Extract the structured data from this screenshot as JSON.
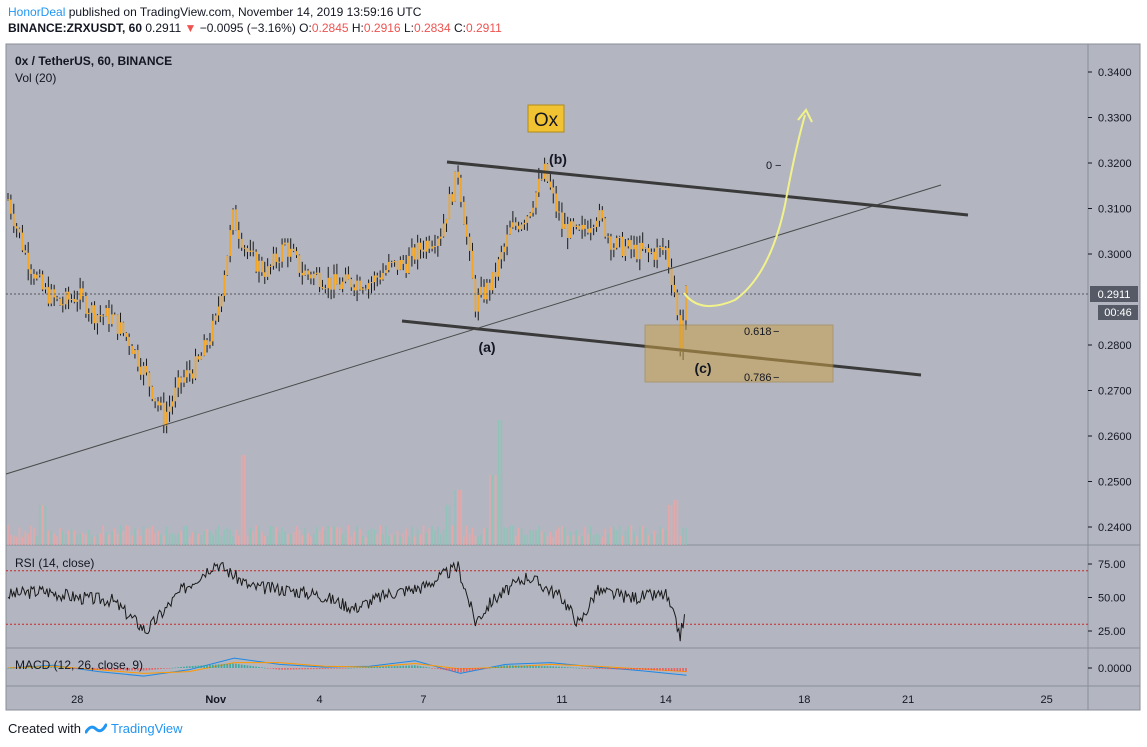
{
  "header": {
    "author": "HonorDeal",
    "published_text": "published on TradingView.com, November 14, 2019 13:59:16 UTC",
    "symbol_line_prefix": "BINANCE:ZRXUSDT, 60",
    "last": "0.2911",
    "change": "−0.0095 (−3.16%)",
    "o_label": "O:",
    "o_value": "0.2845",
    "h_label": "H:",
    "h_value": "0.2916",
    "l_label": "L:",
    "l_value": "0.2834",
    "c_label": "C:",
    "c_value": "0.2911"
  },
  "panels": {
    "main_title": "0x / TetherUS, 60, BINANCE",
    "vol_label": "Vol (20)",
    "rsi_label": "RSI (14, close)",
    "macd_label": "MACD (12, 26, close, 9)"
  },
  "annotations": {
    "logo_box": "Ox",
    "wave_a": "(a)",
    "wave_b": "(b)",
    "wave_c": "(c)",
    "fib_0": "0",
    "fib_618": "0.618",
    "fib_786": "0.786"
  },
  "price_tags": {
    "last_price": "0.2911",
    "countdown": "00:46"
  },
  "footer": {
    "created_with": "Created with",
    "brand": "TradingView"
  },
  "colors": {
    "background": "#b3b6c1",
    "candle": "#f5a623",
    "candle_wick": "#1a1a1a",
    "vol_up": "#8fc3b8",
    "vol_down": "#e8a6a6",
    "trendline": "#3a3a3a",
    "fib_zone": "#c9a04a",
    "arrow": "#f2f28a",
    "rsi_line": "#1a1a1a",
    "rsi_band": "#c62828",
    "macd": "#1e88e5",
    "signal": "#ff9800"
  },
  "chart_data": [
    {
      "type": "candlestick",
      "panel": "price",
      "symbol": "ZRXUSDT",
      "interval": "60",
      "exchange": "BINANCE",
      "y_ticks": [
        "0.3400",
        "0.3300",
        "0.3200",
        "0.3100",
        "0.3000",
        "0.2800",
        "0.2700",
        "0.2600",
        "0.2500",
        "0.2400"
      ],
      "ylim": [
        0.235,
        0.345
      ],
      "x_ticks": [
        "28",
        "Nov",
        "4",
        "7",
        "11",
        "14",
        "18",
        "21",
        "25"
      ],
      "close_path": [
        [
          "Oct 26 00:00",
          0.312
        ],
        [
          "Oct 26 12:00",
          0.3
        ],
        [
          "Oct 27 00:00",
          0.292
        ],
        [
          "Oct 27 12:00",
          0.289
        ],
        [
          "Oct 28 00:00",
          0.291
        ],
        [
          "Oct 28 12:00",
          0.287
        ],
        [
          "Oct 29 00:00",
          0.286
        ],
        [
          "Oct 29 12:00",
          0.281
        ],
        [
          "Oct 30 00:00",
          0.273
        ],
        [
          "Oct 30 12:00",
          0.264
        ],
        [
          "Oct 31 00:00",
          0.272
        ],
        [
          "Oct 31 12:00",
          0.276
        ],
        [
          "Nov 1 00:00",
          0.285
        ],
        [
          "Nov 1 12:00",
          0.308
        ],
        [
          "Nov 2 00:00",
          0.299
        ],
        [
          "Nov 2 12:00",
          0.296
        ],
        [
          "Nov 3 00:00",
          0.302
        ],
        [
          "Nov 3 12:00",
          0.296
        ],
        [
          "Nov 4 00:00",
          0.295
        ],
        [
          "Nov 4 12:00",
          0.293
        ],
        [
          "Nov 5 00:00",
          0.294
        ],
        [
          "Nov 5 12:00",
          0.294
        ],
        [
          "Nov 6 00:00",
          0.297
        ],
        [
          "Nov 6 12:00",
          0.298
        ],
        [
          "Nov 7 00:00",
          0.302
        ],
        [
          "Nov 7 12:00",
          0.305
        ],
        [
          "Nov 8 00:00",
          0.318
        ],
        [
          "Nov 8 12:00",
          0.289
        ],
        [
          "Nov 9 00:00",
          0.294
        ],
        [
          "Nov 9 12:00",
          0.305
        ],
        [
          "Nov 10 00:00",
          0.309
        ],
        [
          "Nov 10 12:00",
          0.318
        ],
        [
          "Nov 11 00:00",
          0.306
        ],
        [
          "Nov 11 12:00",
          0.304
        ],
        [
          "Nov 12 00:00",
          0.309
        ],
        [
          "Nov 12 12:00",
          0.302
        ],
        [
          "Nov 13 00:00",
          0.301
        ],
        [
          "Nov 13 12:00",
          0.3
        ],
        [
          "Nov 14 00:00",
          0.301
        ],
        [
          "Nov 14 06:00",
          0.292
        ],
        [
          "Nov 14 10:00",
          0.28
        ],
        [
          "Nov 14 14:00",
          0.2911
        ]
      ]
    },
    {
      "type": "bar",
      "panel": "volume",
      "name": "Vol (20)",
      "note": "hourly volume bars, relative scale, spikes near Nov 1, Nov 8, Nov 9 and Nov 14"
    },
    {
      "type": "line",
      "panel": "rsi",
      "name": "RSI (14, close)",
      "y_ticks": [
        "75.00",
        "50.00",
        "25.00"
      ],
      "ylim": [
        10,
        85
      ],
      "bands": [
        70,
        30
      ],
      "points": [
        [
          "Oct 26",
          52
        ],
        [
          "Oct 27",
          55
        ],
        [
          "Oct 28",
          50
        ],
        [
          "Oct 29",
          48
        ],
        [
          "Oct 30",
          25
        ],
        [
          "Oct 31",
          55
        ],
        [
          "Nov 1",
          76
        ],
        [
          "Nov 2",
          58
        ],
        [
          "Nov 3",
          56
        ],
        [
          "Nov 4",
          52
        ],
        [
          "Nov 5",
          42
        ],
        [
          "Nov 6",
          53
        ],
        [
          "Nov 7",
          58
        ],
        [
          "Nov 8",
          73
        ],
        [
          "Nov 8 12:00",
          32
        ],
        [
          "Nov 9",
          48
        ],
        [
          "Nov 10",
          66
        ],
        [
          "Nov 11",
          50
        ],
        [
          "Nov 11 12:00",
          30
        ],
        [
          "Nov 12",
          55
        ],
        [
          "Nov 13",
          50
        ],
        [
          "Nov 14",
          52
        ],
        [
          "Nov 14 10:00",
          22
        ],
        [
          "Nov 14 14:00",
          40
        ]
      ]
    },
    {
      "type": "line",
      "panel": "macd",
      "name": "MACD (12, 26, close, 9)",
      "y_ticks": [
        "0.0000"
      ],
      "series": [
        {
          "values": [
            0.0,
            0.0003,
            -0.0004,
            -0.0009,
            -0.0002,
            0.0011,
            0.0004,
            0.0001,
            0.0002,
            0.0008,
            -0.0006,
            0.0004,
            0.0006,
            0.0001,
            -0.0003,
            -0.0008
          ]
        },
        {
          "values": [
            0.0,
            0.0002,
            -0.0002,
            -0.0006,
            -0.0004,
            0.0006,
            0.0006,
            0.0002,
            0.0001,
            0.0005,
            -0.0001,
            0.0001,
            0.0004,
            0.0002,
            -0.0001,
            -0.0004
          ]
        }
      ]
    }
  ]
}
